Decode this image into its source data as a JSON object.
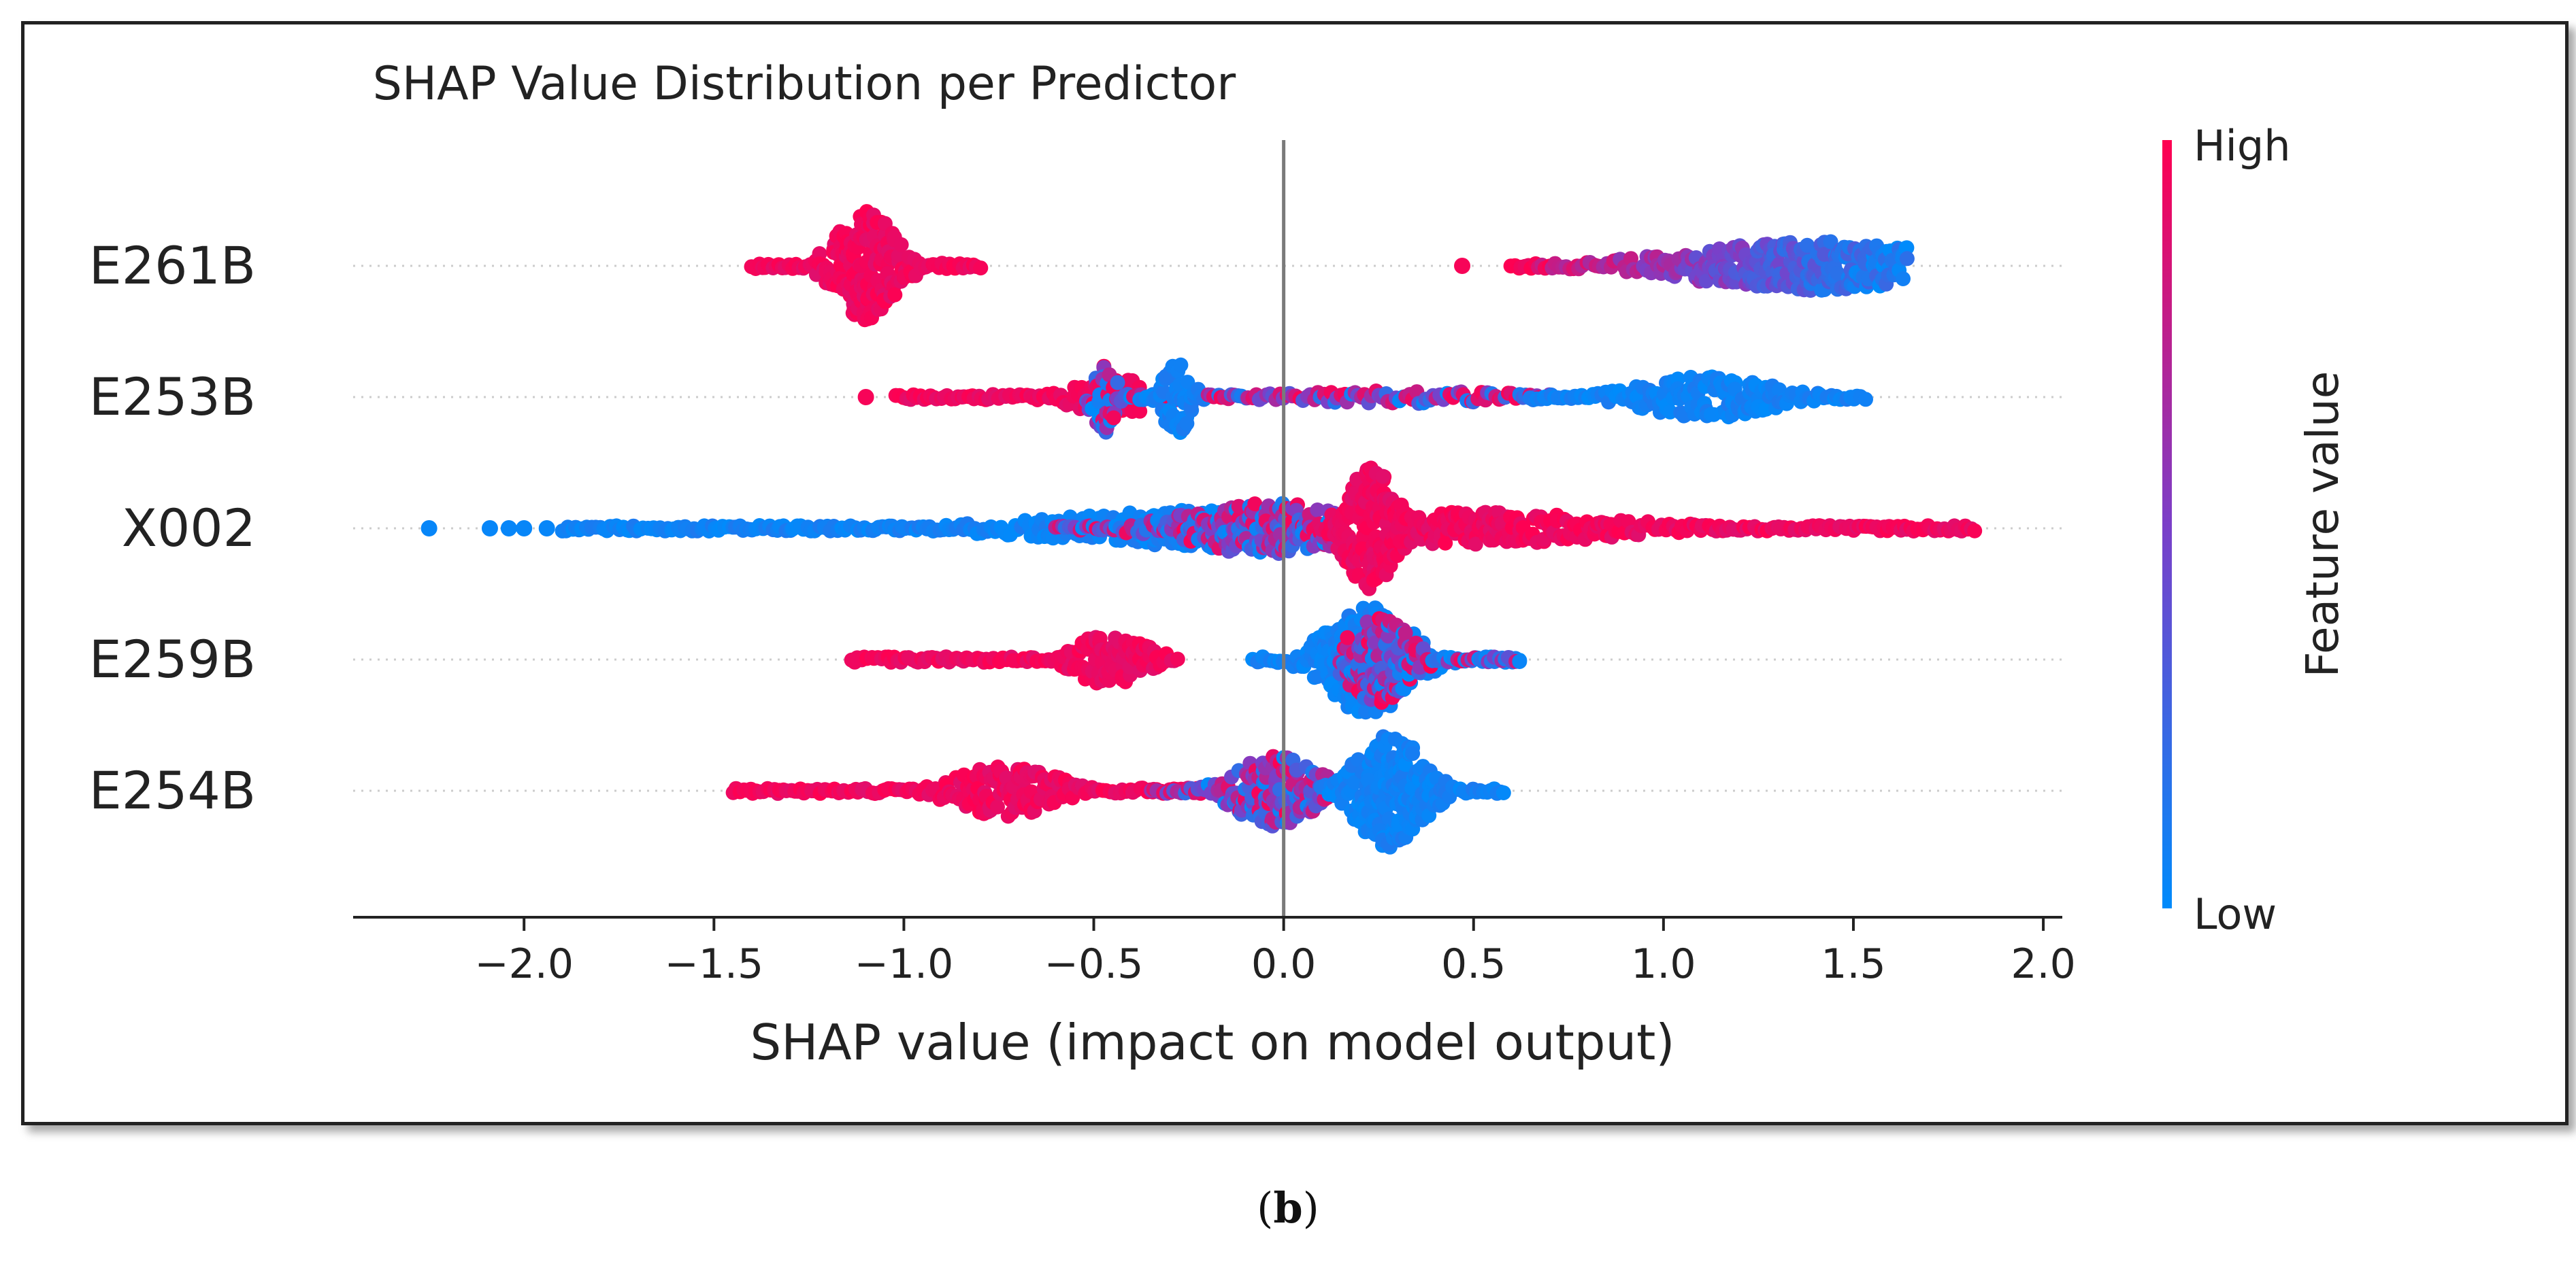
{
  "caption": {
    "open": "(",
    "letter": "b",
    "close": ")"
  },
  "chart_data": {
    "type": "scatter",
    "subtype": "shap-beeswarm",
    "title": "SHAP Value Distribution per Predictor",
    "xlabel": "SHAP value (impact on model output)",
    "xlim": [
      -2.45,
      2.05
    ],
    "xticks": [
      -2.0,
      -1.5,
      -1.0,
      -0.5,
      0.0,
      0.5,
      1.0,
      1.5,
      2.0
    ],
    "xtick_labels": [
      "−2.0",
      "−1.5",
      "−1.0",
      "−0.5",
      "0.0",
      "0.5",
      "1.0",
      "1.5",
      "2.0"
    ],
    "zero_line": 0.0,
    "features": [
      "E261B",
      "E253B",
      "X002",
      "E259B",
      "E254B"
    ],
    "colorbar": {
      "label": "Feature value",
      "high_label": "High",
      "low_label": "Low",
      "high_color": "#ff0051",
      "mid_color": "#7b3fc8",
      "low_color": "#008bfb"
    },
    "distributions": [
      {
        "feature": "E261B",
        "segments": [
          {
            "range": [
              -1.4,
              -0.8
            ],
            "peak": -1.1,
            "width": 0.07,
            "height": 0.85,
            "color": "high"
          },
          {
            "range": [
              0.6,
              1.64
            ],
            "peak": 1.4,
            "width": 0.32,
            "height": 0.38,
            "color": "mixed",
            "low_side": "right"
          }
        ],
        "outliers": [
          {
            "x": 0.47,
            "color": "high"
          }
        ]
      },
      {
        "feature": "E253B",
        "segments": [
          {
            "range": [
              -1.02,
              -0.38
            ],
            "peak": -0.45,
            "width": 0.09,
            "height": 0.3,
            "color": "high"
          },
          {
            "range": [
              -0.52,
              -0.22
            ],
            "peak": -0.47,
            "width": 0.03,
            "height": 0.55,
            "color": "mixed"
          },
          {
            "range": [
              -0.38,
              -0.2
            ],
            "peak": -0.28,
            "width": 0.03,
            "height": 0.6,
            "color": "low"
          },
          {
            "range": [
              -0.2,
              0.7
            ],
            "peak": 0.3,
            "width": 0.3,
            "height": 0.1,
            "color": "mixed"
          },
          {
            "range": [
              0.65,
              1.53
            ],
            "peak": 1.12,
            "width": 0.16,
            "height": 0.33,
            "color": "low"
          }
        ],
        "outliers": [
          {
            "x": -1.1,
            "color": "high"
          }
        ]
      },
      {
        "feature": "X002",
        "segments": [
          {
            "range": [
              -1.9,
              0.0
            ],
            "peak": -0.1,
            "width": 0.45,
            "height": 0.3,
            "color": "low"
          },
          {
            "range": [
              -0.6,
              0.15
            ],
            "peak": -0.05,
            "width": 0.2,
            "height": 0.4,
            "color": "mixed"
          },
          {
            "range": [
              0.1,
              0.4
            ],
            "peak": 0.23,
            "width": 0.06,
            "height": 0.95,
            "color": "high"
          },
          {
            "range": [
              0.3,
              1.82
            ],
            "peak": 0.5,
            "width": 0.35,
            "height": 0.25,
            "color": "high"
          }
        ],
        "outliers": [
          {
            "x": -2.25,
            "color": "low"
          },
          {
            "x": -2.09,
            "color": "low"
          },
          {
            "x": -2.04,
            "color": "low"
          },
          {
            "x": -2.0,
            "color": "low"
          },
          {
            "x": -1.94,
            "color": "low"
          }
        ]
      },
      {
        "feature": "E259B",
        "segments": [
          {
            "range": [
              -1.14,
              -0.28
            ],
            "peak": -0.46,
            "width": 0.09,
            "height": 0.4,
            "color": "high"
          },
          {
            "range": [
              -0.08,
              0.62
            ],
            "peak": 0.22,
            "width": 0.1,
            "height": 0.85,
            "color": "low"
          },
          {
            "range": [
              0.15,
              0.62
            ],
            "peak": 0.25,
            "width": 0.07,
            "height": 0.7,
            "color": "mixed"
          }
        ],
        "outliers": []
      },
      {
        "feature": "E254B",
        "segments": [
          {
            "range": [
              -1.45,
              -0.2
            ],
            "peak": -0.73,
            "width": 0.12,
            "height": 0.4,
            "color": "high"
          },
          {
            "range": [
              -0.35,
              0.15
            ],
            "peak": -0.02,
            "width": 0.1,
            "height": 0.55,
            "color": "mixed"
          },
          {
            "range": [
              0.1,
              0.58
            ],
            "peak": 0.28,
            "width": 0.08,
            "height": 0.9,
            "color": "low"
          }
        ],
        "outliers": []
      }
    ]
  }
}
